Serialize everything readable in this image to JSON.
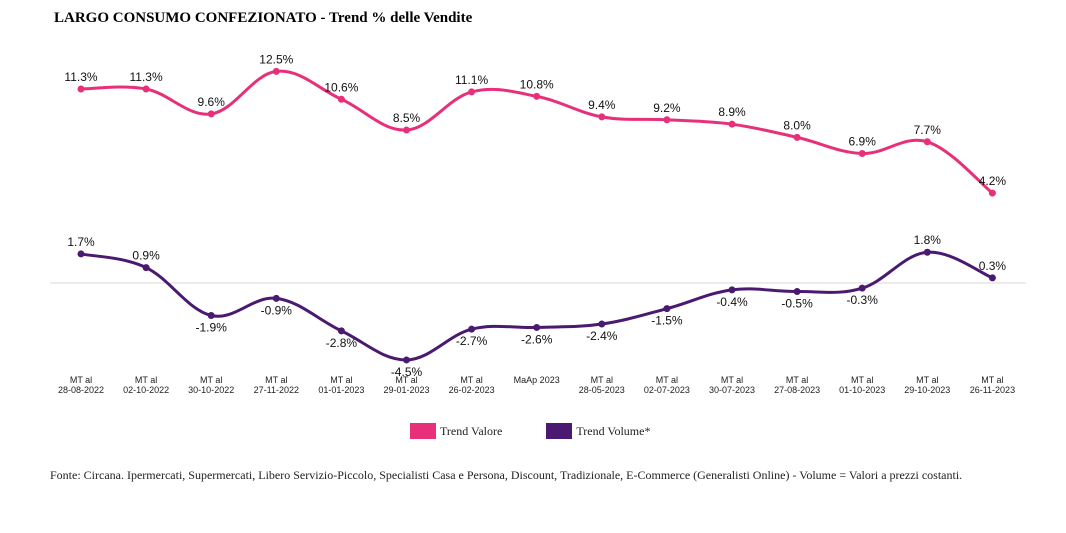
{
  "chart_data": {
    "type": "line",
    "title": "LARGO CONSUMO CONFEZIONATO - Trend % delle Vendite",
    "categories": [
      [
        "MT al",
        "28-08-2022"
      ],
      [
        "MT al",
        "02-10-2022"
      ],
      [
        "MT al",
        "30-10-2022"
      ],
      [
        "MT al",
        "27-11-2022"
      ],
      [
        "MT al",
        "01-01-2023"
      ],
      [
        "MT al",
        "29-01-2023"
      ],
      [
        "MT al",
        "26-02-2023"
      ],
      [
        "MaAp 2023"
      ],
      [
        "MT al",
        "28-05-2023"
      ],
      [
        "MT al",
        "02-07-2023"
      ],
      [
        "MT al",
        "30-07-2023"
      ],
      [
        "MT al",
        "27-08-2023"
      ],
      [
        "MT al",
        "01-10-2023"
      ],
      [
        "MT al",
        "29-10-2023"
      ],
      [
        "MT al",
        "26-11-2023"
      ]
    ],
    "series": [
      {
        "name": "Trend Valore",
        "color": "#e8307a",
        "values": [
          11.3,
          11.3,
          9.6,
          12.5,
          10.6,
          8.5,
          11.1,
          10.8,
          9.4,
          9.2,
          8.9,
          8.0,
          6.9,
          7.7,
          4.2
        ],
        "labels": [
          "11.3%",
          "11.3%",
          "9.6%",
          "12.5%",
          "10.6%",
          "8.5%",
          "11.1%",
          "10.8%",
          "9.4%",
          "9.2%",
          "8.9%",
          "8.0%",
          "6.9%",
          "7.7%",
          "4.2%"
        ]
      },
      {
        "name": "Trend Volume*",
        "color": "#4a1a70",
        "values": [
          1.7,
          0.9,
          -1.9,
          -0.9,
          -2.8,
          -4.5,
          -2.7,
          -2.6,
          -2.4,
          -1.5,
          -0.4,
          -0.5,
          -0.3,
          1.8,
          0.3
        ],
        "labels": [
          "1.7%",
          "0.9%",
          "-1.9%",
          "-0.9%",
          "-2.8%",
          "-4.5%",
          "-2.7%",
          "-2.6%",
          "-2.4%",
          "-1.5%",
          "-0.4%",
          "-0.5%",
          "-0.3%",
          "1.8%",
          "0.3%"
        ]
      }
    ],
    "legend_position": "bottom",
    "grid": false,
    "zero_line": true
  },
  "footnote": "Fonte: Circana. Ipermercati, Supermercati, Libero Servizio-Piccolo, Specialisti Casa e Persona, Discount, Tradizionale, E-Commerce (Generalisti Online) - Volume = Valori a prezzi costanti."
}
